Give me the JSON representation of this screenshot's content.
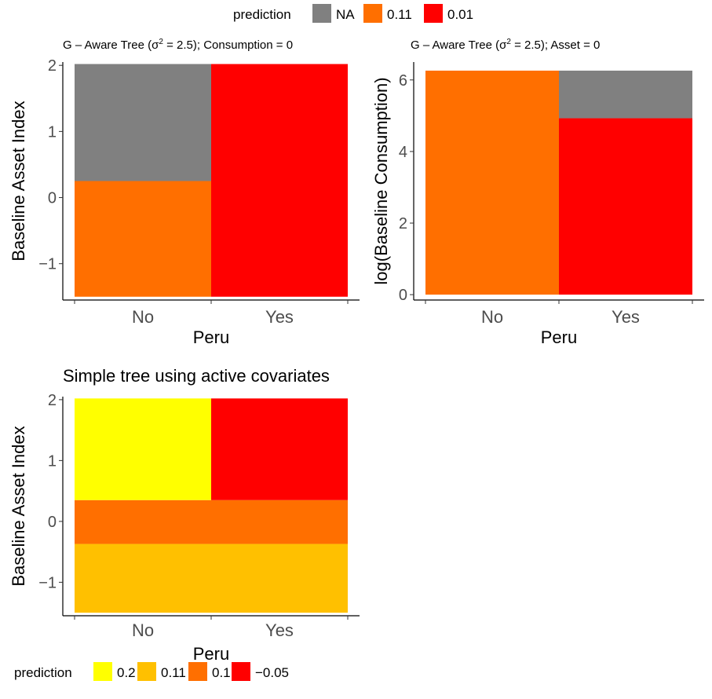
{
  "legends": [
    {
      "title": "prediction",
      "items": [
        {
          "label": "NA",
          "color": "#808080"
        },
        {
          "label": "0.11",
          "color": "#FF6F00"
        },
        {
          "label": "0.01",
          "color": "#FF0000"
        }
      ]
    },
    {
      "title": "prediction",
      "items": [
        {
          "label": "0.2",
          "color": "#FFFF00"
        },
        {
          "label": "0.11",
          "color": "#FFC000"
        },
        {
          "label": "0.1",
          "color": "#FF6F00"
        },
        {
          "label": "−0.05",
          "color": "#FF0000"
        }
      ]
    }
  ],
  "chart_data": [
    {
      "type": "heatmap",
      "title": "G – Aware Tree (σ² = 2.5); Consumption = 0",
      "title_parts": [
        "G – Aware Tree (σ",
        "2",
        " = 2.5); Consumption = 0"
      ],
      "xlabel": "Peru",
      "ylabel": "Baseline Asset Index",
      "categories": [
        "No",
        "Yes"
      ],
      "ylim": [
        -1.55,
        2.05
      ],
      "yticks": [
        -1,
        0,
        1,
        2
      ],
      "ytick_labels": [
        "−1",
        "0",
        "1",
        "2"
      ],
      "tiles": [
        {
          "x": "No",
          "y0": -1.5,
          "y1": 0.25,
          "prediction": "0.11",
          "color": "#FF6F00"
        },
        {
          "x": "No",
          "y0": 0.25,
          "y1": 2.02,
          "prediction": "NA",
          "color": "#808080"
        },
        {
          "x": "Yes",
          "y0": -1.5,
          "y1": 2.02,
          "prediction": "0.01",
          "color": "#FF0000"
        }
      ]
    },
    {
      "type": "heatmap",
      "title": "G – Aware Tree (σ² = 2.5); Asset = 0",
      "title_parts": [
        "G – Aware Tree (σ",
        "2",
        " = 2.5); Asset = 0"
      ],
      "xlabel": "Peru",
      "ylabel": "log(Baseline Consumption)",
      "categories": [
        "No",
        "Yes"
      ],
      "ylim": [
        -0.15,
        6.5
      ],
      "yticks": [
        0,
        2,
        4,
        6
      ],
      "ytick_labels": [
        "0",
        "2",
        "4",
        "6"
      ],
      "tiles": [
        {
          "x": "No",
          "y0": 0,
          "y1": 6.26,
          "prediction": "0.11",
          "color": "#FF6F00"
        },
        {
          "x": "Yes",
          "y0": 0,
          "y1": 4.93,
          "prediction": "0.01",
          "color": "#FF0000"
        },
        {
          "x": "Yes",
          "y0": 4.93,
          "y1": 6.26,
          "prediction": "NA",
          "color": "#808080"
        }
      ]
    },
    {
      "type": "heatmap",
      "title": "Simple tree using active covariates",
      "xlabel": "Peru",
      "ylabel": "Baseline Asset Index",
      "categories": [
        "No",
        "Yes"
      ],
      "ylim": [
        -1.55,
        2.05
      ],
      "yticks": [
        -1,
        0,
        1,
        2
      ],
      "ytick_labels": [
        "−1",
        "0",
        "1",
        "2"
      ],
      "tiles": [
        {
          "x": "No",
          "y0": -1.5,
          "y1": -0.37,
          "prediction": "0.11",
          "color": "#FFC000"
        },
        {
          "x": "Yes",
          "y0": -1.5,
          "y1": -0.37,
          "prediction": "0.11",
          "color": "#FFC000"
        },
        {
          "x": "No",
          "y0": -0.37,
          "y1": 0.35,
          "prediction": "0.1",
          "color": "#FF6F00"
        },
        {
          "x": "Yes",
          "y0": -0.37,
          "y1": 0.35,
          "prediction": "0.1",
          "color": "#FF6F00"
        },
        {
          "x": "No",
          "y0": 0.35,
          "y1": 2.02,
          "prediction": "0.2",
          "color": "#FFFF00"
        },
        {
          "x": "Yes",
          "y0": 0.35,
          "y1": 2.02,
          "prediction": "−0.05",
          "color": "#FF0000"
        }
      ]
    }
  ]
}
